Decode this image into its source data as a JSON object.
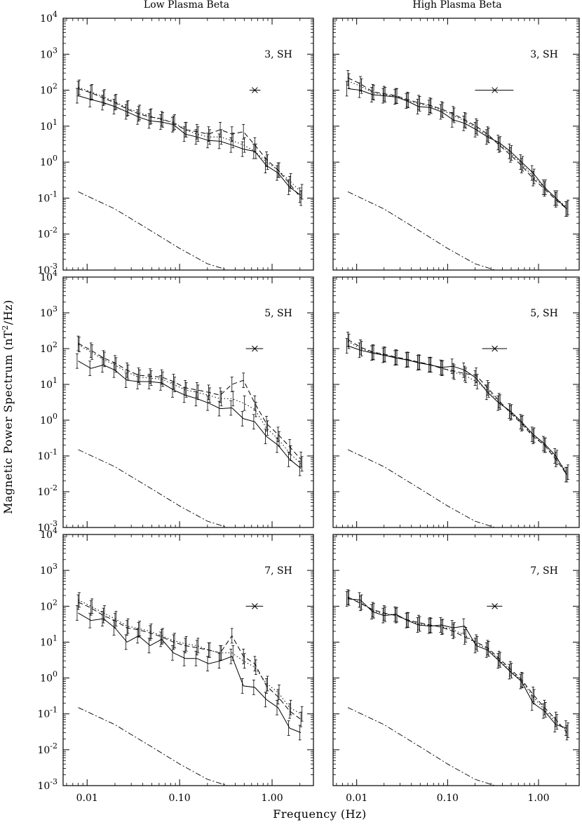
{
  "figure": {
    "column_titles": [
      "Low Plasma Beta",
      "High Plasma Beta"
    ],
    "xlabel": "Frequency (Hz)",
    "ylabel": "Magnetic Power Spectrum (nT",
    "ylabel_sup": "2",
    "ylabel_tail": "/Hz)"
  },
  "chart_data": [
    {
      "type": "line",
      "panel": "low-beta-3SH",
      "label": "3, SH",
      "xscale": "log",
      "yscale": "log",
      "xlim": [
        0.0055,
        2.8
      ],
      "ylim": [
        0.001,
        10000
      ],
      "x_ticks": [
        "0.01",
        "0.10",
        "1.00"
      ],
      "y_ticks": [
        [
          "10",
          "-3"
        ],
        [
          "10",
          "-2"
        ],
        [
          "10",
          "-1"
        ],
        [
          "10",
          "0"
        ],
        [
          "10",
          "1"
        ],
        [
          "10",
          "2"
        ],
        [
          "10",
          "3"
        ],
        [
          "10",
          "4"
        ]
      ],
      "x": [
        0.008,
        0.011,
        0.015,
        0.02,
        0.027,
        0.036,
        0.048,
        0.064,
        0.086,
        0.115,
        0.154,
        0.206,
        0.275,
        0.368,
        0.49,
        0.65,
        0.87,
        1.16,
        1.55,
        2.05
      ],
      "series": [
        {
          "style": "solid",
          "values": [
            70,
            55,
            45,
            35,
            25,
            18,
            14,
            13,
            11,
            6,
            5,
            4,
            3.8,
            3,
            2.3,
            2,
            0.8,
            0.5,
            0.2,
            0.12
          ]
        },
        {
          "style": "dashed",
          "values": [
            110,
            85,
            60,
            45,
            30,
            22,
            18,
            16,
            12,
            8,
            7,
            6,
            8,
            6,
            7,
            3,
            1.2,
            0.6,
            0.25,
            0.1
          ]
        },
        {
          "style": "dotted",
          "values": [
            120,
            90,
            65,
            48,
            32,
            24,
            19,
            15,
            13,
            8,
            6,
            5,
            5,
            4,
            3,
            2,
            1,
            0.6,
            0.3,
            0.15
          ]
        }
      ],
      "reference_curve": {
        "style": "dash-dot",
        "x": [
          0.008,
          0.02,
          0.05,
          0.1,
          0.2,
          0.33
        ],
        "values": [
          0.15,
          0.05,
          0.012,
          0.004,
          0.0015,
          0.001
        ]
      },
      "error_marker": {
        "x": 0.65,
        "y": 100,
        "x_low": 0.57,
        "x_high": 0.75
      }
    },
    {
      "type": "line",
      "panel": "high-beta-3SH",
      "label": "3, SH",
      "xscale": "log",
      "yscale": "log",
      "xlim": [
        0.0055,
        2.8
      ],
      "ylim": [
        0.001,
        10000
      ],
      "x_ticks": [
        "0.01",
        "0.10",
        "1.00"
      ],
      "y_ticks": [],
      "x": [
        0.008,
        0.011,
        0.015,
        0.02,
        0.027,
        0.036,
        0.048,
        0.064,
        0.086,
        0.115,
        0.154,
        0.206,
        0.275,
        0.368,
        0.49,
        0.65,
        0.87,
        1.16,
        1.55,
        2.05
      ],
      "series": [
        {
          "style": "solid",
          "values": [
            110,
            100,
            75,
            70,
            65,
            50,
            35,
            33,
            25,
            15,
            12,
            8,
            5,
            3.5,
            2,
            1,
            0.5,
            0.2,
            0.1,
            0.05
          ]
        },
        {
          "style": "dashed",
          "values": [
            220,
            150,
            90,
            80,
            70,
            55,
            45,
            38,
            30,
            22,
            15,
            10,
            6,
            3,
            1.6,
            0.8,
            0.35,
            0.18,
            0.09,
            0.05
          ]
        },
        {
          "style": "dotted",
          "values": [
            180,
            130,
            85,
            75,
            68,
            52,
            42,
            36,
            28,
            20,
            14,
            9,
            5.5,
            3.2,
            1.8,
            0.9,
            0.4,
            0.2,
            0.1,
            0.055
          ]
        }
      ],
      "reference_curve": {
        "style": "dash-dot",
        "x": [
          0.008,
          0.02,
          0.05,
          0.1,
          0.2,
          0.33
        ],
        "values": [
          0.15,
          0.05,
          0.012,
          0.004,
          0.0015,
          0.001
        ]
      },
      "error_marker": {
        "x": 0.33,
        "y": 100,
        "x_low": 0.2,
        "x_high": 0.53
      }
    },
    {
      "type": "line",
      "panel": "low-beta-5SH",
      "label": "5, SH",
      "xscale": "log",
      "yscale": "log",
      "xlim": [
        0.0055,
        2.8
      ],
      "ylim": [
        0.001,
        10000
      ],
      "x_ticks": [
        "0.01",
        "0.10",
        "1.00"
      ],
      "y_ticks": [
        [
          "10",
          "-3"
        ],
        [
          "10",
          "-2"
        ],
        [
          "10",
          "-1"
        ],
        [
          "10",
          "0"
        ],
        [
          "10",
          "1"
        ],
        [
          "10",
          "2"
        ],
        [
          "10",
          "3"
        ],
        [
          "10",
          "4"
        ]
      ],
      "x": [
        0.008,
        0.011,
        0.015,
        0.02,
        0.027,
        0.036,
        0.048,
        0.064,
        0.086,
        0.115,
        0.154,
        0.206,
        0.275,
        0.368,
        0.49,
        0.65,
        0.87,
        1.16,
        1.55,
        2.05
      ],
      "series": [
        {
          "style": "solid",
          "values": [
            45,
            28,
            35,
            25,
            13,
            12,
            12,
            11,
            7,
            5,
            4,
            3,
            2.1,
            2.2,
            1.1,
            0.9,
            0.35,
            0.2,
            0.08,
            0.045
          ]
        },
        {
          "style": "dashed",
          "values": [
            140,
            90,
            55,
            40,
            25,
            18,
            17,
            16,
            12,
            8,
            7,
            6,
            5,
            10,
            13,
            3,
            0.8,
            0.4,
            0.18,
            0.08
          ]
        },
        {
          "style": "dotted",
          "values": [
            130,
            80,
            50,
            35,
            22,
            16,
            15,
            14,
            10,
            7,
            6,
            5,
            4,
            4,
            3,
            2,
            0.6,
            0.3,
            0.12,
            0.06
          ]
        }
      ],
      "reference_curve": {
        "style": "dash-dot",
        "x": [
          0.008,
          0.02,
          0.05,
          0.1,
          0.2,
          0.33
        ],
        "values": [
          0.15,
          0.05,
          0.012,
          0.004,
          0.0015,
          0.001
        ]
      },
      "error_marker": {
        "x": 0.65,
        "y": 100,
        "x_low": 0.52,
        "x_high": 0.8
      }
    },
    {
      "type": "line",
      "panel": "high-beta-5SH",
      "label": "5, SH",
      "xscale": "log",
      "yscale": "log",
      "xlim": [
        0.0055,
        2.8
      ],
      "ylim": [
        0.001,
        10000
      ],
      "x_ticks": [
        "0.01",
        "0.10",
        "1.00"
      ],
      "y_ticks": [],
      "x": [
        0.008,
        0.011,
        0.015,
        0.02,
        0.027,
        0.036,
        0.048,
        0.064,
        0.086,
        0.115,
        0.154,
        0.206,
        0.275,
        0.368,
        0.49,
        0.65,
        0.87,
        1.16,
        1.55,
        2.05
      ],
      "series": [
        {
          "style": "solid",
          "values": [
            120,
            90,
            75,
            65,
            55,
            48,
            40,
            35,
            30,
            32,
            25,
            15,
            6,
            3,
            1.8,
            0.9,
            0.4,
            0.22,
            0.1,
            0.03
          ]
        },
        {
          "style": "dashed",
          "values": [
            180,
            110,
            80,
            70,
            58,
            50,
            42,
            36,
            28,
            24,
            20,
            18,
            8,
            3.5,
            1.6,
            0.8,
            0.35,
            0.2,
            0.08,
            0.03
          ]
        },
        {
          "style": "dotted",
          "values": [
            160,
            100,
            78,
            68,
            56,
            49,
            41,
            35,
            29,
            22,
            18,
            12,
            7,
            3.2,
            1.7,
            0.85,
            0.38,
            0.2,
            0.09,
            0.035
          ]
        }
      ],
      "reference_curve": {
        "style": "dash-dot",
        "x": [
          0.008,
          0.02,
          0.05,
          0.1,
          0.2,
          0.33
        ],
        "values": [
          0.15,
          0.05,
          0.012,
          0.004,
          0.0015,
          0.001
        ]
      },
      "error_marker": {
        "x": 0.33,
        "y": 100,
        "x_low": 0.24,
        "x_high": 0.45
      }
    },
    {
      "type": "line",
      "panel": "low-beta-7SH",
      "label": "7, SH",
      "xscale": "log",
      "yscale": "log",
      "xlim": [
        0.0055,
        2.8
      ],
      "ylim": [
        0.001,
        10000
      ],
      "x_ticks": [
        "0.01",
        "0.10",
        "1.00"
      ],
      "y_ticks": [
        [
          "10",
          "-3"
        ],
        [
          "10",
          "-2"
        ],
        [
          "10",
          "-1"
        ],
        [
          "10",
          "0"
        ],
        [
          "10",
          "1"
        ],
        [
          "10",
          "2"
        ],
        [
          "10",
          "3"
        ],
        [
          "10",
          "4"
        ]
      ],
      "x": [
        0.008,
        0.011,
        0.015,
        0.02,
        0.027,
        0.036,
        0.048,
        0.064,
        0.086,
        0.115,
        0.154,
        0.206,
        0.275,
        0.368,
        0.49,
        0.65,
        0.87,
        1.16,
        1.55,
        2.05
      ],
      "series": [
        {
          "style": "solid",
          "values": [
            65,
            40,
            45,
            25,
            10,
            15,
            8,
            12,
            5,
            3.5,
            3.5,
            2.5,
            3,
            4,
            0.6,
            0.55,
            0.25,
            0.15,
            0.04,
            0.03
          ]
        },
        {
          "style": "dashed",
          "values": [
            130,
            90,
            55,
            40,
            25,
            22,
            18,
            14,
            10,
            8,
            7,
            6,
            5,
            15,
            4,
            2.5,
            0.6,
            0.3,
            0.12,
            0.07
          ]
        },
        {
          "style": "dotted",
          "values": [
            150,
            100,
            65,
            45,
            28,
            24,
            20,
            15,
            11,
            9,
            8,
            6,
            5,
            5,
            3,
            2,
            0.7,
            0.4,
            0.15,
            0.1
          ]
        }
      ],
      "reference_curve": {
        "style": "dash-dot",
        "x": [
          0.008,
          0.02,
          0.05,
          0.1,
          0.2,
          0.33
        ],
        "values": [
          0.15,
          0.05,
          0.012,
          0.004,
          0.0015,
          0.001
        ]
      },
      "error_marker": {
        "x": 0.65,
        "y": 100,
        "x_low": 0.52,
        "x_high": 0.8
      }
    },
    {
      "type": "line",
      "panel": "high-beta-7SH",
      "label": "7, SH",
      "xscale": "log",
      "yscale": "log",
      "xlim": [
        0.0055,
        2.8
      ],
      "ylim": [
        0.001,
        10000
      ],
      "x_ticks": [
        "0.01",
        "0.10",
        "1.00"
      ],
      "y_ticks": [],
      "x": [
        0.008,
        0.011,
        0.015,
        0.02,
        0.027,
        0.036,
        0.048,
        0.064,
        0.086,
        0.115,
        0.154,
        0.206,
        0.275,
        0.368,
        0.49,
        0.65,
        0.87,
        1.16,
        1.55,
        2.05
      ],
      "series": [
        {
          "style": "solid",
          "values": [
            160,
            150,
            70,
            55,
            60,
            40,
            30,
            28,
            30,
            25,
            28,
            8,
            6,
            3,
            1.5,
            0.8,
            0.2,
            0.12,
            0.05,
            0.04
          ]
        },
        {
          "style": "dashed",
          "values": [
            180,
            120,
            80,
            65,
            55,
            42,
            35,
            30,
            26,
            20,
            14,
            10,
            7,
            3.5,
            1.8,
            0.9,
            0.35,
            0.15,
            0.07,
            0.03
          ]
        },
        {
          "style": "dotted",
          "values": [
            170,
            130,
            75,
            60,
            58,
            41,
            32,
            29,
            27,
            22,
            16,
            9,
            6.5,
            3.2,
            1.6,
            0.85,
            0.3,
            0.13,
            0.06,
            0.035
          ]
        }
      ],
      "reference_curve": {
        "style": "dash-dot",
        "x": [
          0.008,
          0.02,
          0.05,
          0.1,
          0.2,
          0.33
        ],
        "values": [
          0.15,
          0.05,
          0.012,
          0.004,
          0.0015,
          0.001
        ]
      },
      "error_marker": {
        "x": 0.33,
        "y": 100,
        "x_low": 0.27,
        "x_high": 0.4
      }
    }
  ]
}
